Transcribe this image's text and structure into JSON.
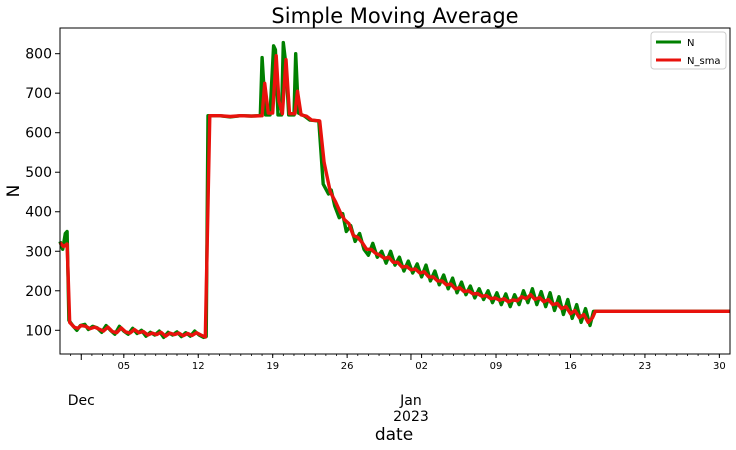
{
  "chart_data": {
    "type": "line",
    "title": "Simple Moving Average",
    "xlabel": "date",
    "ylabel": "N",
    "x_range": [
      "2022-11-29",
      "2023-01-31"
    ],
    "ylim": [
      40,
      865
    ],
    "grid": false,
    "legend_position": "top-right",
    "y_ticks": [
      100,
      200,
      300,
      400,
      500,
      600,
      700,
      800
    ],
    "x_minor_ticks": [
      {
        "date": "2022-12-05",
        "label": "05"
      },
      {
        "date": "2022-12-12",
        "label": "12"
      },
      {
        "date": "2022-12-19",
        "label": "19"
      },
      {
        "date": "2022-12-26",
        "label": "26"
      },
      {
        "date": "2023-01-02",
        "label": "02"
      },
      {
        "date": "2023-01-09",
        "label": "09"
      },
      {
        "date": "2023-01-16",
        "label": "16"
      },
      {
        "date": "2023-01-23",
        "label": "23"
      },
      {
        "date": "2023-01-30",
        "label": "30"
      }
    ],
    "x_major_labels": [
      {
        "date": "2022-12-01",
        "line1": "Dec",
        "line2": ""
      },
      {
        "date": "2023-01-01",
        "line1": "Jan",
        "line2": "2023"
      }
    ],
    "series": [
      {
        "name": "N",
        "color": "#008000",
        "points": [
          [
            "2022-11-29 00:00",
            325
          ],
          [
            "2022-11-29 06:00",
            305
          ],
          [
            "2022-11-29 12:00",
            345
          ],
          [
            "2022-11-29 16:00",
            350
          ],
          [
            "2022-11-29 20:00",
            125
          ],
          [
            "2022-11-30 06:00",
            110
          ],
          [
            "2022-11-30 14:00",
            100
          ],
          [
            "2022-11-30 22:00",
            112
          ],
          [
            "2022-12-01 08:00",
            115
          ],
          [
            "2022-12-01 16:00",
            102
          ],
          [
            "2022-12-02 02:00",
            110
          ],
          [
            "2022-12-02 12:00",
            106
          ],
          [
            "2022-12-02 22:00",
            95
          ],
          [
            "2022-12-03 08:00",
            112
          ],
          [
            "2022-12-03 18:00",
            100
          ],
          [
            "2022-12-04 04:00",
            90
          ],
          [
            "2022-12-04 14:00",
            110
          ],
          [
            "2022-12-05 00:00",
            98
          ],
          [
            "2022-12-05 10:00",
            90
          ],
          [
            "2022-12-05 20:00",
            105
          ],
          [
            "2022-12-06 06:00",
            92
          ],
          [
            "2022-12-06 16:00",
            100
          ],
          [
            "2022-12-07 02:00",
            85
          ],
          [
            "2022-12-07 12:00",
            95
          ],
          [
            "2022-12-07 22:00",
            88
          ],
          [
            "2022-12-08 08:00",
            98
          ],
          [
            "2022-12-08 18:00",
            82
          ],
          [
            "2022-12-09 04:00",
            95
          ],
          [
            "2022-12-09 14:00",
            88
          ],
          [
            "2022-12-10 00:00",
            96
          ],
          [
            "2022-12-10 10:00",
            84
          ],
          [
            "2022-12-10 20:00",
            94
          ],
          [
            "2022-12-11 06:00",
            85
          ],
          [
            "2022-12-11 16:00",
            98
          ],
          [
            "2022-12-12 02:00",
            88
          ],
          [
            "2022-12-12 12:00",
            82
          ],
          [
            "2022-12-12 18:00",
            84
          ],
          [
            "2022-12-12 22:00",
            643
          ],
          [
            "2022-12-14 00:00",
            643
          ],
          [
            "2022-12-15 00:00",
            640
          ],
          [
            "2022-12-16 00:00",
            643
          ],
          [
            "2022-12-17 00:00",
            642
          ],
          [
            "2022-12-17 20:00",
            643
          ],
          [
            "2022-12-18 00:00",
            790
          ],
          [
            "2022-12-18 08:00",
            645
          ],
          [
            "2022-12-18 18:00",
            645
          ],
          [
            "2022-12-19 02:00",
            820
          ],
          [
            "2022-12-19 06:00",
            810
          ],
          [
            "2022-12-19 12:00",
            645
          ],
          [
            "2022-12-19 20:00",
            645
          ],
          [
            "2022-12-20 00:00",
            828
          ],
          [
            "2022-12-20 06:00",
            770
          ],
          [
            "2022-12-20 12:00",
            645
          ],
          [
            "2022-12-21 00:00",
            645
          ],
          [
            "2022-12-21 04:00",
            800
          ],
          [
            "2022-12-21 10:00",
            650
          ],
          [
            "2022-12-22 00:00",
            642
          ],
          [
            "2022-12-22 12:00",
            632
          ],
          [
            "2022-12-23 08:00",
            630
          ],
          [
            "2022-12-23 18:00",
            470
          ],
          [
            "2022-12-24 06:00",
            445
          ],
          [
            "2022-12-24 12:00",
            455
          ],
          [
            "2022-12-24 20:00",
            415
          ],
          [
            "2022-12-25 06:00",
            385
          ],
          [
            "2022-12-25 14:00",
            395
          ],
          [
            "2022-12-25 22:00",
            350
          ],
          [
            "2022-12-26 08:00",
            365
          ],
          [
            "2022-12-26 18:00",
            325
          ],
          [
            "2022-12-27 04:00",
            345
          ],
          [
            "2022-12-27 14:00",
            305
          ],
          [
            "2022-12-28 00:00",
            290
          ],
          [
            "2022-12-28 10:00",
            320
          ],
          [
            "2022-12-28 20:00",
            285
          ],
          [
            "2022-12-29 06:00",
            300
          ],
          [
            "2022-12-29 16:00",
            270
          ],
          [
            "2022-12-30 02:00",
            300
          ],
          [
            "2022-12-30 12:00",
            265
          ],
          [
            "2022-12-30 22:00",
            285
          ],
          [
            "2022-12-31 08:00",
            250
          ],
          [
            "2022-12-31 18:00",
            275
          ],
          [
            "2023-01-01 04:00",
            245
          ],
          [
            "2023-01-01 14:00",
            268
          ],
          [
            "2023-01-02 00:00",
            235
          ],
          [
            "2023-01-02 10:00",
            265
          ],
          [
            "2023-01-02 20:00",
            225
          ],
          [
            "2023-01-03 06:00",
            250
          ],
          [
            "2023-01-03 16:00",
            215
          ],
          [
            "2023-01-04 02:00",
            240
          ],
          [
            "2023-01-04 12:00",
            205
          ],
          [
            "2023-01-04 22:00",
            232
          ],
          [
            "2023-01-05 08:00",
            195
          ],
          [
            "2023-01-05 18:00",
            222
          ],
          [
            "2023-01-06 04:00",
            190
          ],
          [
            "2023-01-06 14:00",
            212
          ],
          [
            "2023-01-07 00:00",
            182
          ],
          [
            "2023-01-07 10:00",
            205
          ],
          [
            "2023-01-07 20:00",
            178
          ],
          [
            "2023-01-08 06:00",
            200
          ],
          [
            "2023-01-08 16:00",
            170
          ],
          [
            "2023-01-09 02:00",
            195
          ],
          [
            "2023-01-09 12:00",
            165
          ],
          [
            "2023-01-09 22:00",
            192
          ],
          [
            "2023-01-10 08:00",
            160
          ],
          [
            "2023-01-10 18:00",
            190
          ],
          [
            "2023-01-11 04:00",
            165
          ],
          [
            "2023-01-11 14:00",
            200
          ],
          [
            "2023-01-12 00:00",
            170
          ],
          [
            "2023-01-12 10:00",
            205
          ],
          [
            "2023-01-12 20:00",
            165
          ],
          [
            "2023-01-13 06:00",
            198
          ],
          [
            "2023-01-13 16:00",
            160
          ],
          [
            "2023-01-14 02:00",
            195
          ],
          [
            "2023-01-14 12:00",
            150
          ],
          [
            "2023-01-14 22:00",
            185
          ],
          [
            "2023-01-15 08:00",
            140
          ],
          [
            "2023-01-15 18:00",
            178
          ],
          [
            "2023-01-16 04:00",
            130
          ],
          [
            "2023-01-16 14:00",
            165
          ],
          [
            "2023-01-17 00:00",
            120
          ],
          [
            "2023-01-17 10:00",
            155
          ],
          [
            "2023-01-17 20:00",
            112
          ],
          [
            "2023-01-18 04:00",
            148
          ],
          [
            "2023-01-19 00:00",
            148
          ],
          [
            "2023-01-31 00:00",
            148
          ]
        ]
      },
      {
        "name": "N_sma",
        "color": "#e8120c",
        "points": [
          [
            "2022-11-29 00:00",
            322
          ],
          [
            "2022-11-29 08:00",
            312
          ],
          [
            "2022-11-29 16:00",
            318
          ],
          [
            "2022-11-29 22:00",
            120
          ],
          [
            "2022-11-30 08:00",
            108
          ],
          [
            "2022-11-30 16:00",
            105
          ],
          [
            "2022-12-01 00:00",
            112
          ],
          [
            "2022-12-01 10:00",
            110
          ],
          [
            "2022-12-01 20:00",
            104
          ],
          [
            "2022-12-02 06:00",
            108
          ],
          [
            "2022-12-02 16:00",
            103
          ],
          [
            "2022-12-03 02:00",
            98
          ],
          [
            "2022-12-03 12:00",
            108
          ],
          [
            "2022-12-03 22:00",
            97
          ],
          [
            "2022-12-04 08:00",
            94
          ],
          [
            "2022-12-04 18:00",
            106
          ],
          [
            "2022-12-05 04:00",
            96
          ],
          [
            "2022-12-05 14:00",
            93
          ],
          [
            "2022-12-06 00:00",
            102
          ],
          [
            "2022-12-06 10:00",
            94
          ],
          [
            "2022-12-06 20:00",
            97
          ],
          [
            "2022-12-07 06:00",
            88
          ],
          [
            "2022-12-07 16:00",
            93
          ],
          [
            "2022-12-08 02:00",
            89
          ],
          [
            "2022-12-08 12:00",
            95
          ],
          [
            "2022-12-08 22:00",
            85
          ],
          [
            "2022-12-09 08:00",
            93
          ],
          [
            "2022-12-09 18:00",
            89
          ],
          [
            "2022-12-10 04:00",
            93
          ],
          [
            "2022-12-10 14:00",
            86
          ],
          [
            "2022-12-11 00:00",
            92
          ],
          [
            "2022-12-11 10:00",
            87
          ],
          [
            "2022-12-11 20:00",
            94
          ],
          [
            "2022-12-12 06:00",
            88
          ],
          [
            "2022-12-12 16:00",
            83
          ],
          [
            "2022-12-13 02:00",
            643
          ],
          [
            "2022-12-14 00:00",
            643
          ],
          [
            "2022-12-15 00:00",
            641
          ],
          [
            "2022-12-16 00:00",
            643
          ],
          [
            "2022-12-17 00:00",
            642
          ],
          [
            "2022-12-18 00:00",
            643
          ],
          [
            "2022-12-18 06:00",
            725
          ],
          [
            "2022-12-18 14:00",
            650
          ],
          [
            "2022-12-19 00:00",
            650
          ],
          [
            "2022-12-19 08:00",
            795
          ],
          [
            "2022-12-19 14:00",
            680
          ],
          [
            "2022-12-19 22:00",
            648
          ],
          [
            "2022-12-20 06:00",
            785
          ],
          [
            "2022-12-20 14:00",
            648
          ],
          [
            "2022-12-21 02:00",
            648
          ],
          [
            "2022-12-21 08:00",
            705
          ],
          [
            "2022-12-21 16:00",
            645
          ],
          [
            "2022-12-22 04:00",
            642
          ],
          [
            "2022-12-22 16:00",
            632
          ],
          [
            "2022-12-23 10:00",
            630
          ],
          [
            "2022-12-23 20:00",
            525
          ],
          [
            "2022-12-24 10:00",
            450
          ],
          [
            "2022-12-24 22:00",
            425
          ],
          [
            "2022-12-25 10:00",
            395
          ],
          [
            "2022-12-25 18:00",
            380
          ],
          [
            "2022-12-26 04:00",
            370
          ],
          [
            "2022-12-26 14:00",
            340
          ],
          [
            "2022-12-27 00:00",
            335
          ],
          [
            "2022-12-27 10:00",
            322
          ],
          [
            "2022-12-27 20:00",
            305
          ],
          [
            "2022-12-28 06:00",
            305
          ],
          [
            "2022-12-28 16:00",
            295
          ],
          [
            "2022-12-29 02:00",
            290
          ],
          [
            "2022-12-29 12:00",
            282
          ],
          [
            "2022-12-29 22:00",
            285
          ],
          [
            "2022-12-30 08:00",
            272
          ],
          [
            "2022-12-30 18:00",
            272
          ],
          [
            "2022-12-31 04:00",
            260
          ],
          [
            "2022-12-31 14:00",
            262
          ],
          [
            "2023-01-01 00:00",
            253
          ],
          [
            "2023-01-01 10:00",
            255
          ],
          [
            "2023-01-01 20:00",
            245
          ],
          [
            "2023-01-02 06:00",
            248
          ],
          [
            "2023-01-02 16:00",
            235
          ],
          [
            "2023-01-03 02:00",
            235
          ],
          [
            "2023-01-03 12:00",
            225
          ],
          [
            "2023-01-03 22:00",
            225
          ],
          [
            "2023-01-04 08:00",
            215
          ],
          [
            "2023-01-04 18:00",
            217
          ],
          [
            "2023-01-05 04:00",
            205
          ],
          [
            "2023-01-05 14:00",
            208
          ],
          [
            "2023-01-06 00:00",
            198
          ],
          [
            "2023-01-06 10:00",
            200
          ],
          [
            "2023-01-06 20:00",
            192
          ],
          [
            "2023-01-07 06:00",
            193
          ],
          [
            "2023-01-07 16:00",
            186
          ],
          [
            "2023-01-08 02:00",
            188
          ],
          [
            "2023-01-08 12:00",
            180
          ],
          [
            "2023-01-08 22:00",
            182
          ],
          [
            "2023-01-09 08:00",
            176
          ],
          [
            "2023-01-09 18:00",
            180
          ],
          [
            "2023-01-10 04:00",
            172
          ],
          [
            "2023-01-10 14:00",
            177
          ],
          [
            "2023-01-11 00:00",
            175
          ],
          [
            "2023-01-11 10:00",
            185
          ],
          [
            "2023-01-11 20:00",
            180
          ],
          [
            "2023-01-12 06:00",
            190
          ],
          [
            "2023-01-12 16:00",
            178
          ],
          [
            "2023-01-13 02:00",
            183
          ],
          [
            "2023-01-13 12:00",
            172
          ],
          [
            "2023-01-13 22:00",
            178
          ],
          [
            "2023-01-14 08:00",
            165
          ],
          [
            "2023-01-14 18:00",
            168
          ],
          [
            "2023-01-15 04:00",
            155
          ],
          [
            "2023-01-15 14:00",
            160
          ],
          [
            "2023-01-16 00:00",
            142
          ],
          [
            "2023-01-16 10:00",
            150
          ],
          [
            "2023-01-16 20:00",
            132
          ],
          [
            "2023-01-17 06:00",
            140
          ],
          [
            "2023-01-17 16:00",
            120
          ],
          [
            "2023-01-18 02:00",
            132
          ],
          [
            "2023-01-18 08:00",
            148
          ],
          [
            "2023-01-19 00:00",
            148
          ],
          [
            "2023-01-31 00:00",
            148
          ]
        ]
      }
    ]
  }
}
